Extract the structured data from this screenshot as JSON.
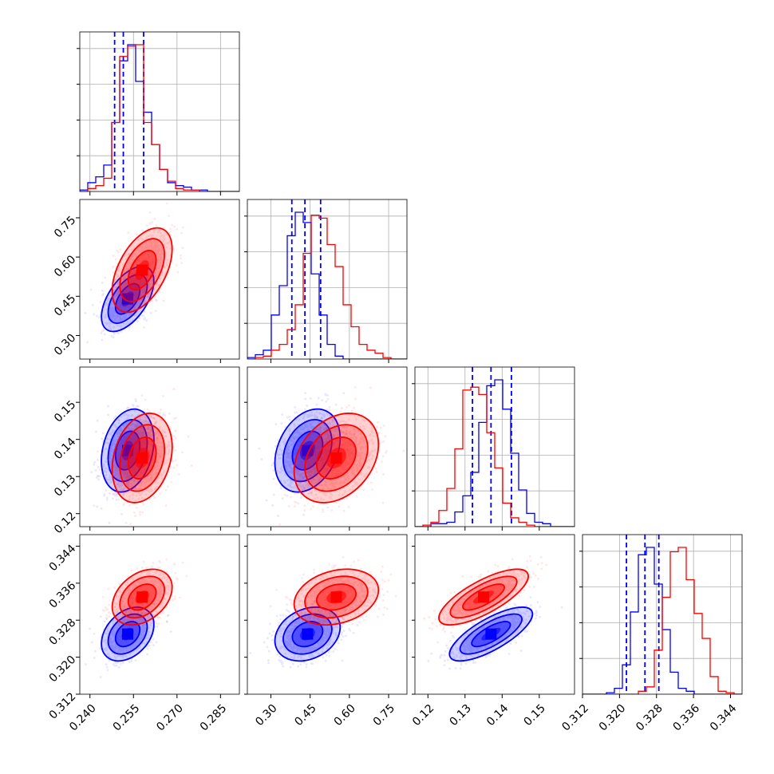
{
  "chart_data": {
    "type": "corner",
    "title": "",
    "parameters": [
      {
        "ticks": [
          0.24,
          0.255,
          0.27,
          0.285
        ],
        "tick_labels": [
          "0.240",
          "0.255",
          "0.270",
          "0.285"
        ],
        "range": [
          0.2365,
          0.2915
        ]
      },
      {
        "ticks": [
          0.3,
          0.45,
          0.6,
          0.75
        ],
        "tick_labels": [
          "0.30",
          "0.45",
          "0.60",
          "0.75"
        ],
        "range": [
          0.21,
          0.82
        ]
      },
      {
        "ticks": [
          0.12,
          0.13,
          0.14,
          0.15
        ],
        "tick_labels": [
          "0.12",
          "0.13",
          "0.14",
          "0.15"
        ],
        "range": [
          0.1165,
          0.1595
        ]
      },
      {
        "ticks": [
          0.312,
          0.32,
          0.328,
          0.336,
          0.344
        ],
        "tick_labels": [
          "0.312",
          "0.320",
          "0.328",
          "0.336",
          "0.344"
        ],
        "range": [
          0.312,
          0.3465
        ]
      }
    ],
    "series": [
      {
        "color": "#0000ff",
        "means": [
          0.253,
          0.44,
          0.137,
          0.325
        ],
        "sigmas": [
          0.0042,
          0.058,
          0.0052,
          0.0027
        ],
        "correlations": {
          "0-1": 0.55,
          "0-2": 0.25,
          "0-3": 0.35,
          "1-2": 0.3,
          "1-3": 0.25,
          "2-3": 0.75
        },
        "quantiles": [
          [
            0.2485,
            0.2515,
            0.2585
          ],
          [
            0.38,
            0.43,
            0.49
          ],
          [
            0.132,
            0.137,
            0.1425
          ],
          [
            0.3215,
            0.3255,
            0.3285
          ]
        ],
        "histograms": [
          {
            "edges_range": [
              0.2365,
              0.2915
            ],
            "counts": [
              0.01,
              0.06,
              0.1,
              0.18,
              0.47,
              0.89,
              1.0,
              0.75,
              0.54,
              0.32,
              0.15,
              0.06,
              0.04,
              0.03,
              0.01,
              0.01,
              0,
              0,
              0,
              0
            ]
          },
          {
            "edges_range": [
              0.21,
              0.82
            ],
            "counts": [
              0.01,
              0.03,
              0.06,
              0.3,
              0.5,
              0.84,
              1.0,
              0.93,
              0.58,
              0.3,
              0.1,
              0.02,
              0,
              0,
              0,
              0,
              0,
              0,
              0,
              0
            ]
          },
          {
            "edges_range": [
              0.1165,
              0.1595
            ],
            "counts": [
              0,
              0,
              0.02,
              0.02,
              0.03,
              0.1,
              0.21,
              0.37,
              0.71,
              0.96,
              1.0,
              0.8,
              0.5,
              0.25,
              0.09,
              0.03,
              0.02,
              0,
              0,
              0
            ]
          },
          {
            "edges_range": [
              0.312,
              0.3465
            ],
            "counts": [
              0,
              0,
              0,
              0.01,
              0.04,
              0.2,
              0.56,
              0.95,
              1.0,
              0.75,
              0.44,
              0.15,
              0.04,
              0.02,
              0,
              0,
              0,
              0,
              0,
              0
            ]
          }
        ]
      },
      {
        "color": "#ff0000",
        "means": [
          0.258,
          0.55,
          0.135,
          0.333
        ],
        "sigmas": [
          0.0048,
          0.075,
          0.0056,
          0.0028
        ],
        "correlations": {
          "0-1": 0.5,
          "0-2": 0.25,
          "0-3": 0.35,
          "1-2": 0.3,
          "1-3": 0.25,
          "2-3": 0.75
        },
        "quantiles": [],
        "histograms": [
          {
            "edges_range": [
              0.2365,
              0.2915
            ],
            "counts": [
              0,
              0.02,
              0.04,
              0.09,
              0.47,
              0.92,
              0.99,
              1.0,
              0.47,
              0.32,
              0.15,
              0.07,
              0.02,
              0.01,
              0.01,
              0,
              0,
              0,
              0,
              0
            ]
          },
          {
            "edges_range": [
              0.21,
              0.82
            ],
            "counts": [
              0,
              0.01,
              0.02,
              0.06,
              0.1,
              0.2,
              0.37,
              0.72,
              0.98,
              0.96,
              0.78,
              0.63,
              0.37,
              0.22,
              0.1,
              0.06,
              0.04,
              0.01,
              0,
              0
            ]
          },
          {
            "edges_range": [
              0.1165,
              0.1595
            ],
            "counts": [
              0,
              0.01,
              0.03,
              0.11,
              0.26,
              0.53,
              0.93,
              0.95,
              0.9,
              0.64,
              0.4,
              0.16,
              0.06,
              0.03,
              0.01,
              0,
              0,
              0,
              0,
              0
            ]
          },
          {
            "edges_range": [
              0.312,
              0.3465
            ],
            "counts": [
              0,
              0,
              0,
              0,
              0,
              0,
              0,
              0.02,
              0.05,
              0.3,
              0.66,
              0.97,
              1.0,
              0.78,
              0.55,
              0.38,
              0.12,
              0.02,
              0.01,
              0
            ]
          }
        ]
      }
    ],
    "grid": true,
    "legend": "none"
  }
}
